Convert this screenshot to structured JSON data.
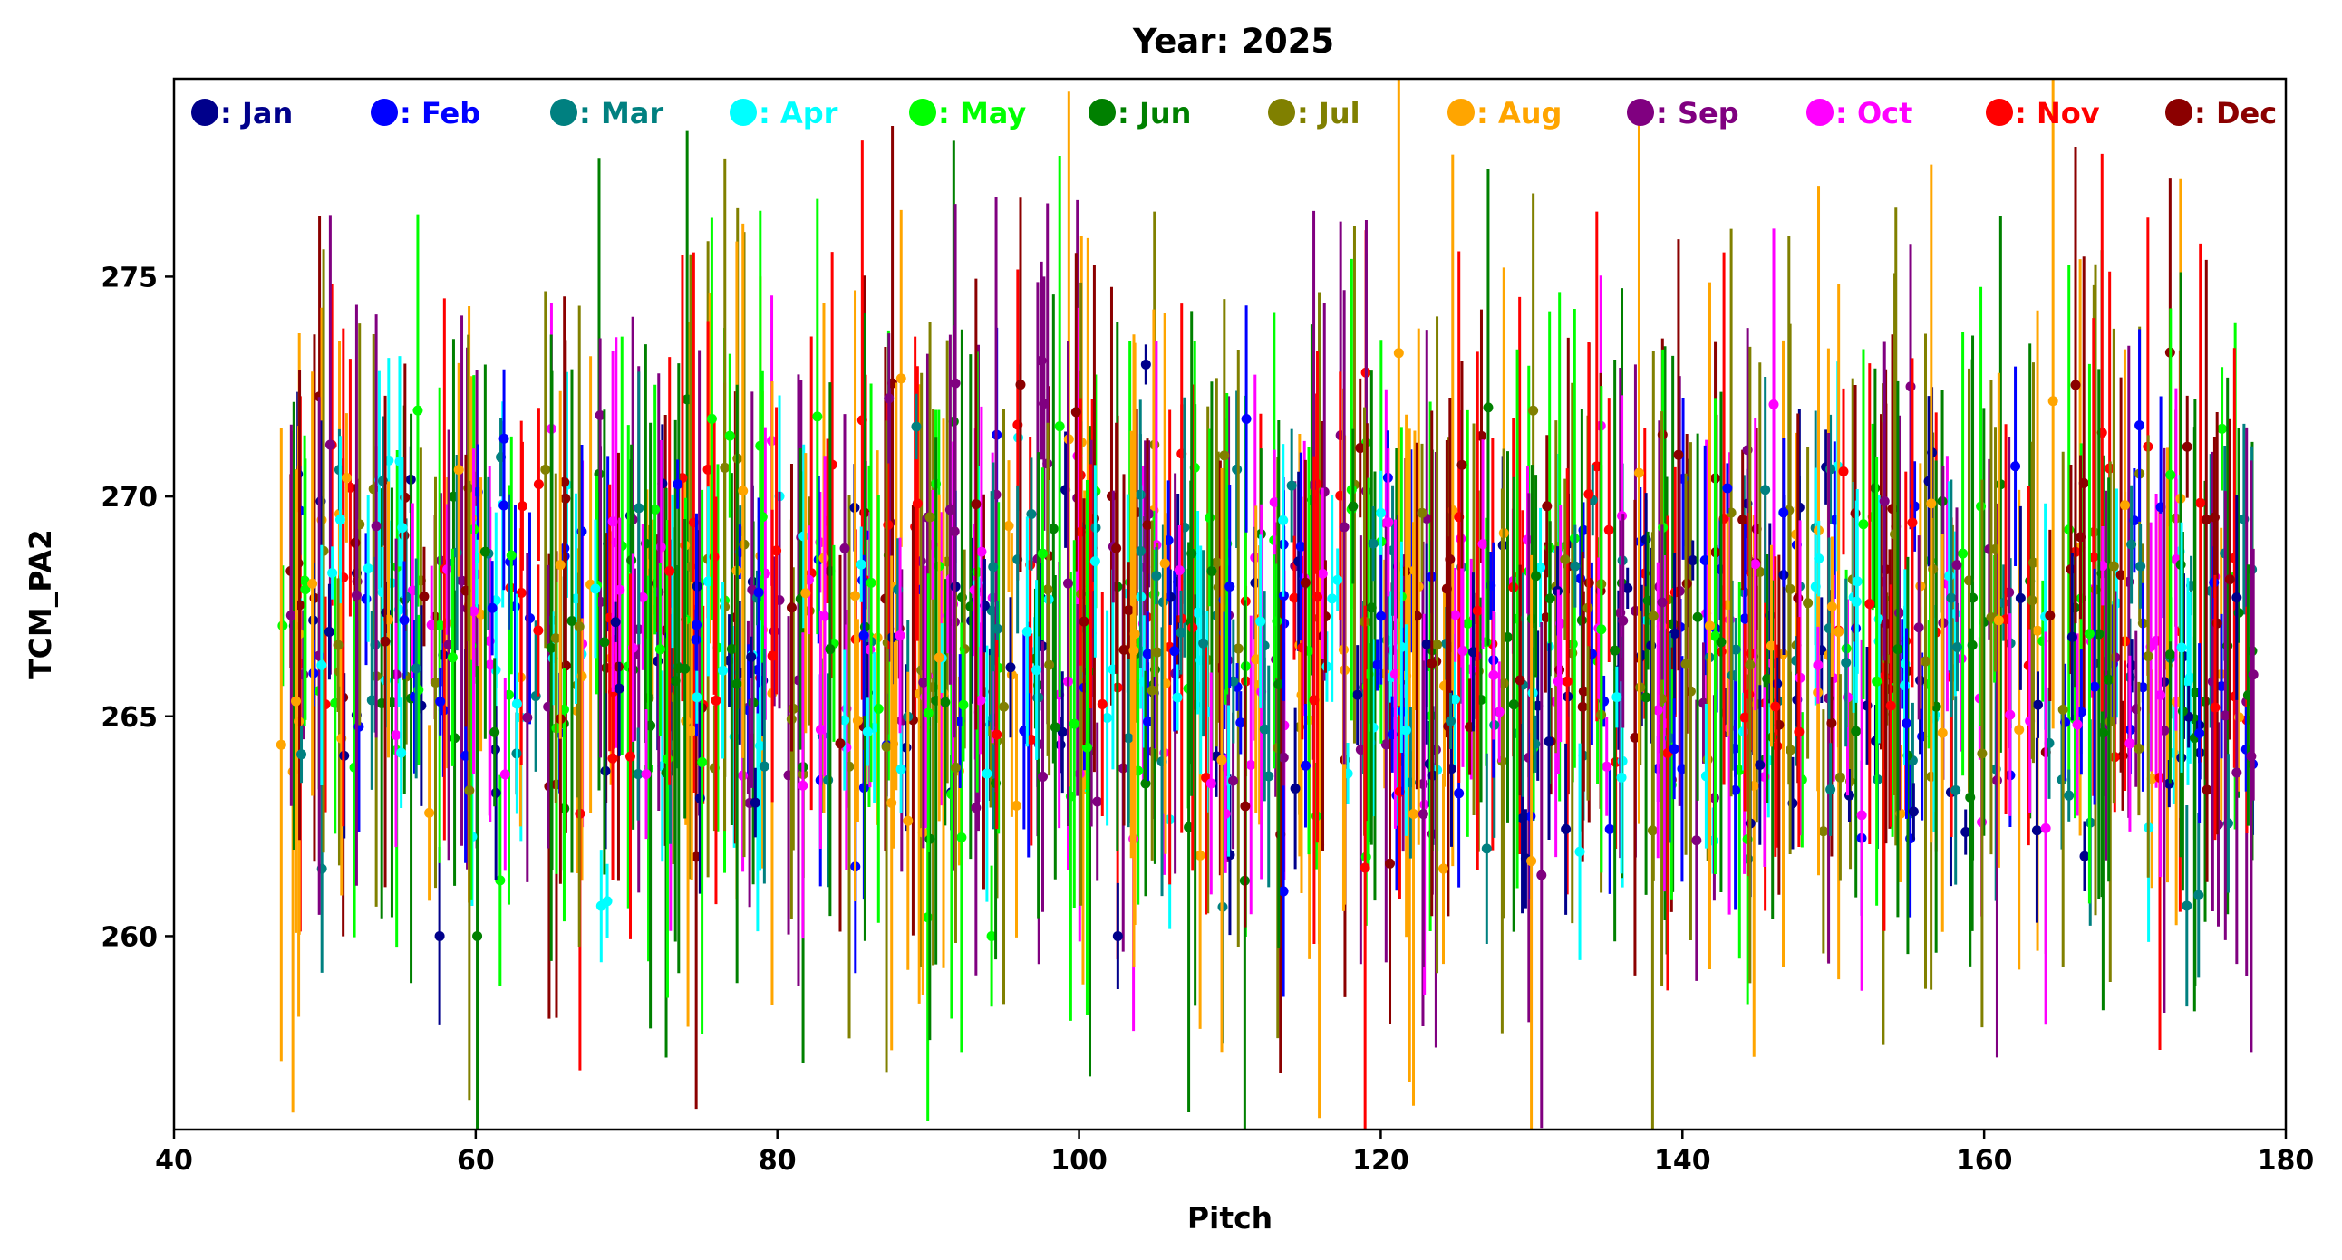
{
  "chart_data": {
    "type": "scatter",
    "title": "Year: 2025",
    "xlabel": "Pitch",
    "ylabel": "TCM_PA2",
    "xlim": [
      40,
      180
    ],
    "ylim": [
      255.6,
      279.5
    ],
    "xticks": [
      40,
      60,
      80,
      100,
      120,
      140,
      160,
      180
    ],
    "yticks": [
      260,
      265,
      270,
      275
    ],
    "grid": false,
    "legend_position": "top",
    "error_bars": "vertical",
    "seed": 2025,
    "x_range": [
      47,
      178
    ],
    "series": [
      {
        "name": "Jan",
        "color": "#00008b",
        "y_center": 266.2,
        "y_spread": 5.2,
        "err_mean": 1.2
      },
      {
        "name": "Feb",
        "color": "#0000ff",
        "y_center": 266.6,
        "y_spread": 5.0,
        "err_mean": 1.4
      },
      {
        "name": "Mar",
        "color": "#008080",
        "y_center": 266.4,
        "y_spread": 5.4,
        "err_mean": 1.6
      },
      {
        "name": "Apr",
        "color": "#00ffff",
        "y_center": 266.2,
        "y_spread": 5.0,
        "err_mean": 1.5
      },
      {
        "name": "May",
        "color": "#00ff00",
        "y_center": 266.6,
        "y_spread": 5.5,
        "err_mean": 3.2
      },
      {
        "name": "Jun",
        "color": "#008000",
        "y_center": 266.4,
        "y_spread": 5.2,
        "err_mean": 3.8
      },
      {
        "name": "Jul",
        "color": "#808000",
        "y_center": 266.8,
        "y_spread": 5.3,
        "err_mean": 3.9
      },
      {
        "name": "Aug",
        "color": "#ffa500",
        "y_center": 266.6,
        "y_spread": 5.6,
        "err_mean": 4.2
      },
      {
        "name": "Sep",
        "color": "#800080",
        "y_center": 266.8,
        "y_spread": 5.2,
        "err_mean": 3.6
      },
      {
        "name": "Oct",
        "color": "#ff00ff",
        "y_center": 266.4,
        "y_spread": 5.0,
        "err_mean": 2.4
      },
      {
        "name": "Nov",
        "color": "#ff0000",
        "y_center": 267.6,
        "y_spread": 5.0,
        "err_mean": 3.3
      },
      {
        "name": "Dec",
        "color": "#8b0000",
        "y_center": 267.4,
        "y_spread": 5.0,
        "err_mean": 3.1
      }
    ],
    "points_per_series": 115
  }
}
